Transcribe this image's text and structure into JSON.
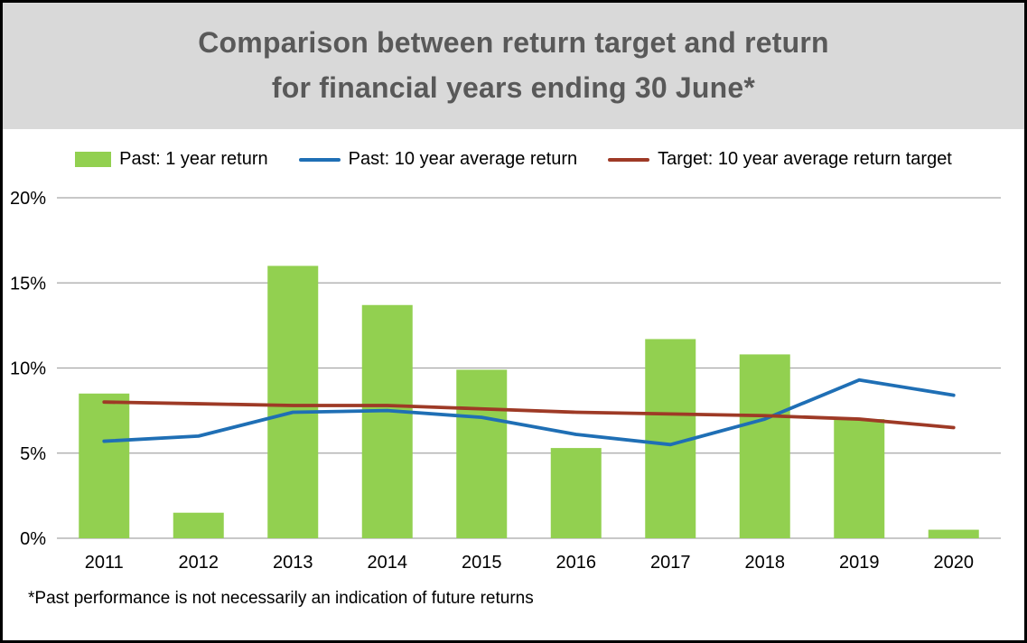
{
  "title": {
    "line1": "Comparison between return target and return",
    "line2": "for financial years ending 30 June*"
  },
  "footnote": "*Past performance is not necessarily an indication of future returns",
  "colors": {
    "title_text": "#595959",
    "title_band_bg": "#d9d9d9",
    "gridline": "#a6a6a6",
    "bar_green": "#92d050",
    "line_blue": "#1f6fb5",
    "line_red": "#9e3a26"
  },
  "chart_data": {
    "type": "bar",
    "title": "Comparison between return target and return for financial years ending 30 June*",
    "categories": [
      "2011",
      "2012",
      "2013",
      "2014",
      "2015",
      "2016",
      "2017",
      "2018",
      "2019",
      "2020"
    ],
    "series": [
      {
        "name": "Past: 1 year return",
        "type": "bar",
        "color": "#92d050",
        "values": [
          8.5,
          1.5,
          16.0,
          13.7,
          9.9,
          5.3,
          11.7,
          10.8,
          7.0,
          0.5
        ]
      },
      {
        "name": "Past: 10 year average return",
        "type": "line",
        "color": "#1f6fb5",
        "values": [
          5.7,
          6.0,
          7.4,
          7.5,
          7.1,
          6.1,
          5.5,
          7.0,
          9.3,
          8.4
        ]
      },
      {
        "name": "Target: 10 year average return target",
        "type": "line",
        "color": "#9e3a26",
        "values": [
          8.0,
          7.9,
          7.8,
          7.8,
          7.6,
          7.4,
          7.3,
          7.2,
          7.0,
          6.5
        ]
      }
    ],
    "xlabel": "",
    "ylabel": "",
    "ylim": [
      0,
      20
    ],
    "ytick_step": 5,
    "ytick_labels": [
      "0%",
      "5%",
      "10%",
      "15%",
      "20%"
    ],
    "grid": true,
    "legend_position": "top",
    "annotation": "*Past performance is not necessarily an indication of future returns"
  }
}
